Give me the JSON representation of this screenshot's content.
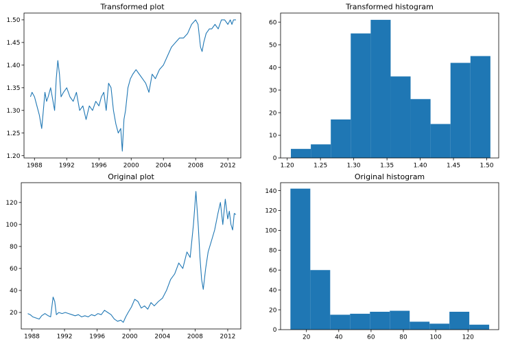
{
  "chart_data": [
    {
      "type": "line",
      "title": "Transformed plot",
      "xlabel": "",
      "ylabel": "",
      "xlim": [
        1986.7,
        2013.6
      ],
      "ylim": [
        1.195,
        1.515
      ],
      "xticks": [
        1988,
        1992,
        1996,
        2000,
        2004,
        2008,
        2012
      ],
      "yticks": [
        1.2,
        1.25,
        1.3,
        1.35,
        1.4,
        1.45,
        1.5
      ],
      "ytick_decimals": 2,
      "color": "#1f77b4",
      "x": [
        1987.5,
        1987.7,
        1988.0,
        1988.3,
        1988.6,
        1988.9,
        1989.1,
        1989.3,
        1989.5,
        1989.7,
        1990.0,
        1990.3,
        1990.5,
        1990.7,
        1990.9,
        1991.1,
        1991.3,
        1991.6,
        1992.0,
        1992.4,
        1992.8,
        1993.2,
        1993.6,
        1994.0,
        1994.4,
        1994.8,
        1995.2,
        1995.6,
        1996.0,
        1996.3,
        1996.6,
        1996.9,
        1997.2,
        1997.5,
        1997.8,
        1998.1,
        1998.4,
        1998.7,
        1998.9,
        1999.1,
        1999.3,
        1999.6,
        1999.9,
        2000.2,
        2000.6,
        2001.0,
        2001.4,
        2001.8,
        2002.2,
        2002.6,
        2003.0,
        2003.5,
        2004.0,
        2004.5,
        2005.0,
        2005.5,
        2006.0,
        2006.5,
        2007.0,
        2007.5,
        2008.0,
        2008.3,
        2008.6,
        2008.8,
        2009.0,
        2009.3,
        2009.7,
        2010.0,
        2010.4,
        2010.8,
        2011.2,
        2011.6,
        2012.0,
        2012.3,
        2012.5,
        2012.7,
        2013.0
      ],
      "y": [
        1.33,
        1.34,
        1.33,
        1.31,
        1.29,
        1.26,
        1.3,
        1.34,
        1.32,
        1.33,
        1.35,
        1.32,
        1.3,
        1.37,
        1.41,
        1.38,
        1.33,
        1.34,
        1.35,
        1.33,
        1.32,
        1.34,
        1.3,
        1.31,
        1.28,
        1.31,
        1.3,
        1.32,
        1.31,
        1.33,
        1.34,
        1.3,
        1.36,
        1.35,
        1.3,
        1.27,
        1.25,
        1.26,
        1.21,
        1.28,
        1.3,
        1.35,
        1.37,
        1.38,
        1.39,
        1.38,
        1.37,
        1.36,
        1.34,
        1.38,
        1.37,
        1.39,
        1.4,
        1.42,
        1.44,
        1.45,
        1.46,
        1.46,
        1.47,
        1.49,
        1.5,
        1.49,
        1.44,
        1.43,
        1.45,
        1.47,
        1.48,
        1.48,
        1.49,
        1.48,
        1.5,
        1.5,
        1.49,
        1.5,
        1.49,
        1.5,
        1.5
      ]
    },
    {
      "type": "bar",
      "title": "Transformed histogram",
      "xlabel": "",
      "ylabel": "",
      "xlim": [
        1.19,
        1.518
      ],
      "ylim": [
        0,
        64
      ],
      "xticks": [
        1.2,
        1.25,
        1.3,
        1.35,
        1.4,
        1.45,
        1.5
      ],
      "yticks": [
        0,
        10,
        20,
        30,
        40,
        50,
        60
      ],
      "xtick_decimals": 2,
      "color": "#1f77b4",
      "bin_edges": [
        1.2055,
        1.2355,
        1.2655,
        1.2955,
        1.3255,
        1.3555,
        1.3855,
        1.4155,
        1.4455,
        1.4755,
        1.5055
      ],
      "values": [
        4,
        6,
        17,
        55,
        61,
        36,
        26,
        15,
        42,
        45
      ]
    },
    {
      "type": "line",
      "title": "Original plot",
      "xlabel": "",
      "ylabel": "",
      "xlim": [
        1986.7,
        2013.6
      ],
      "ylim": [
        5,
        138
      ],
      "xticks": [
        1988,
        1992,
        1996,
        2000,
        2004,
        2008,
        2012
      ],
      "yticks": [
        20,
        40,
        60,
        80,
        100,
        120
      ],
      "ytick_decimals": 0,
      "color": "#1f77b4",
      "x": [
        1987.5,
        1987.8,
        1988.1,
        1988.5,
        1988.9,
        1989.2,
        1989.6,
        1990.0,
        1990.3,
        1990.6,
        1990.8,
        1991.0,
        1991.3,
        1991.7,
        1992.1,
        1992.5,
        1992.9,
        1993.3,
        1993.7,
        1994.1,
        1994.5,
        1994.9,
        1995.3,
        1995.7,
        1996.1,
        1996.5,
        1996.9,
        1997.3,
        1997.7,
        1998.1,
        1998.5,
        1998.9,
        1999.2,
        1999.5,
        1999.8,
        2000.2,
        2000.6,
        2001.0,
        2001.4,
        2001.8,
        2002.2,
        2002.6,
        2003.0,
        2003.5,
        2004.0,
        2004.5,
        2005.0,
        2005.5,
        2006.0,
        2006.5,
        2007.0,
        2007.4,
        2007.8,
        2008.1,
        2008.4,
        2008.6,
        2008.8,
        2009.0,
        2009.3,
        2009.6,
        2010.0,
        2010.4,
        2010.8,
        2011.1,
        2011.4,
        2011.7,
        2012.0,
        2012.2,
        2012.4,
        2012.6,
        2012.8,
        2013.0
      ],
      "y": [
        19,
        18,
        16,
        15,
        14,
        17,
        19,
        17,
        16,
        34,
        30,
        18,
        20,
        19,
        20,
        19,
        18,
        17,
        18,
        16,
        17,
        16,
        18,
        17,
        19,
        18,
        22,
        20,
        18,
        14,
        12,
        13,
        11,
        16,
        20,
        25,
        32,
        30,
        24,
        26,
        23,
        29,
        26,
        30,
        33,
        40,
        50,
        55,
        65,
        60,
        75,
        70,
        100,
        130,
        98,
        70,
        50,
        41,
        60,
        75,
        85,
        95,
        110,
        120,
        100,
        123,
        105,
        112,
        100,
        95,
        110,
        109
      ]
    },
    {
      "type": "bar",
      "title": "Original histogram",
      "xlabel": "",
      "ylabel": "",
      "xlim": [
        4,
        139
      ],
      "ylim": [
        0,
        148
      ],
      "xticks": [
        20,
        40,
        60,
        80,
        100,
        120
      ],
      "yticks": [
        0,
        20,
        40,
        60,
        80,
        100,
        120,
        140
      ],
      "xtick_decimals": 0,
      "color": "#1f77b4",
      "bin_edges": [
        10.1,
        22.4,
        34.7,
        47.0,
        59.3,
        71.6,
        83.9,
        96.2,
        108.5,
        120.8,
        133.1
      ],
      "values": [
        142,
        60,
        15,
        16,
        18,
        19,
        8,
        6,
        18,
        5
      ]
    }
  ]
}
